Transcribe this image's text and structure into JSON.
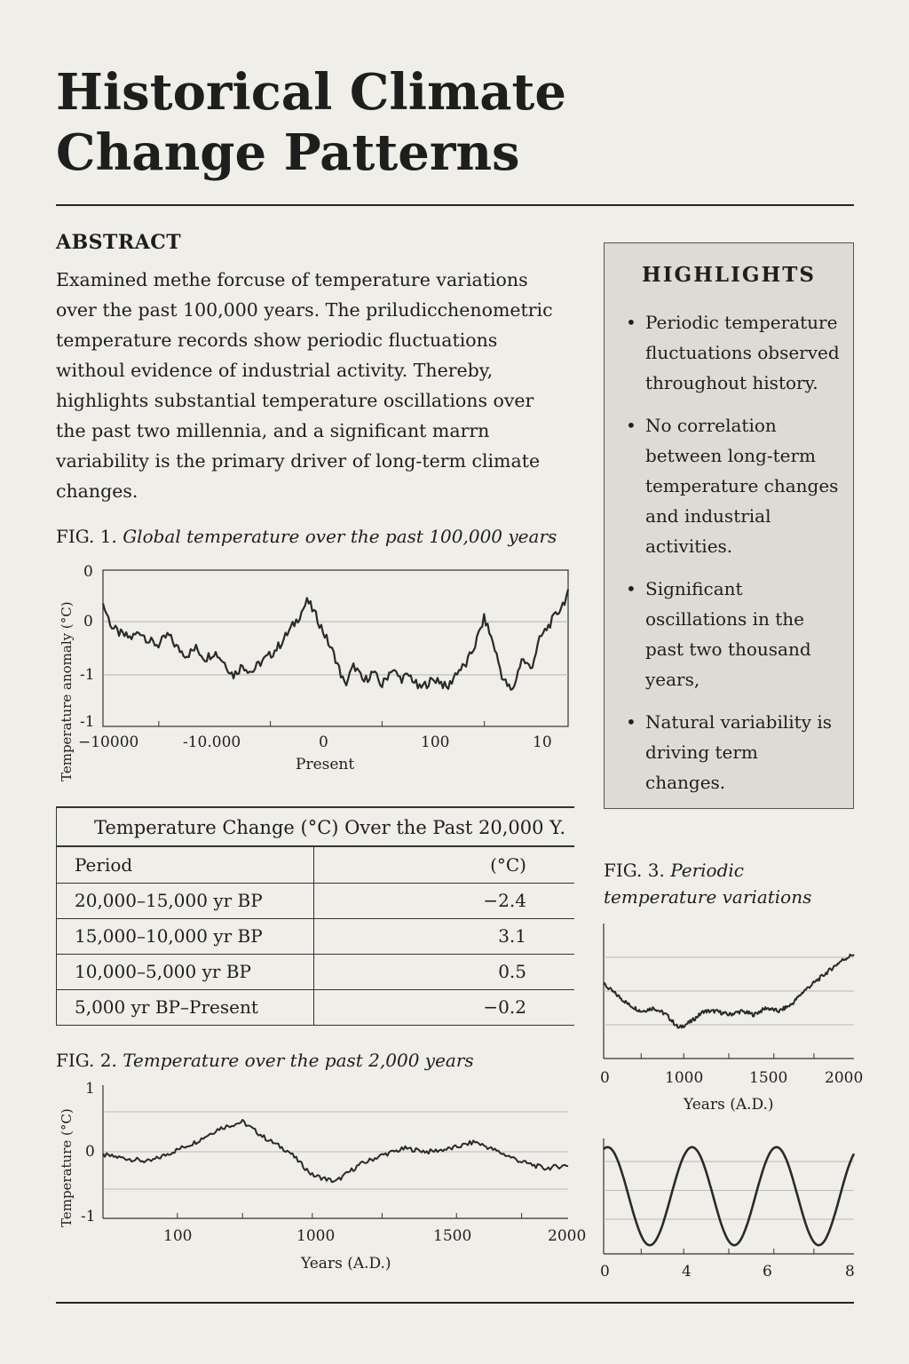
{
  "title": "Historical Climate Change Patterns",
  "abstract": {
    "heading": "ABSTRACT",
    "body": "Examined methe forcuse of temperature variations over the past 100,000 years. The priludicchenometric temperature records show periodic fluctuations withoul evidence of industrial activity. Thereby, highlights substantial temperature oscillations over the past two millennia, and a significant marrn variability is the primary driver of long-term climate changes."
  },
  "highlights": {
    "heading": "HIGHLIGHTS",
    "items": [
      "Periodic temperature fluctuations observed throughout history.",
      "No correlation between long-term temperature changes and industrial activities.",
      "Significant oscillations in the past two thousand years,",
      "Natural variability is driving term changes."
    ]
  },
  "table": {
    "caption": "Temperature Change (°C) Over the Past 20,000 Y.",
    "headers": [
      "Period",
      "(°C)"
    ],
    "rows": [
      [
        "20,000–15,000 yr BP",
        "−2.4"
      ],
      [
        "15,000–10,000 yr BP",
        "3.1"
      ],
      [
        "10,000–5,000 yr BP",
        "0.5"
      ],
      [
        "5,000 yr BP–Present",
        "−0.2"
      ]
    ]
  },
  "figures": {
    "fig1": {
      "num": "FIG. 1.",
      "desc": "Global temperature over the past 100,000 years"
    },
    "fig2": {
      "num": "FIG. 2.",
      "desc": "Temperature over the past 2,000 years"
    },
    "fig3": {
      "num": "FIG. 3.",
      "desc": "Periodic temperature variations"
    }
  },
  "chart_data": [
    {
      "id": "fig1",
      "type": "line",
      "title": "Global temperature over the past 100,000 years",
      "xlabel": "Present",
      "ylabel": "Temperature anomaly (°C)",
      "x_tick_labels": [
        "−10000",
        "-10.000",
        "0",
        "100",
        "10"
      ],
      "y_tick_labels": [
        "0",
        "0",
        "-1",
        "-1"
      ],
      "ylim": [
        -1.5,
        0.8
      ],
      "grid": "horizontal",
      "x": [
        0,
        2,
        4,
        6,
        8,
        10,
        12,
        14,
        16,
        18,
        20,
        22,
        24,
        26,
        28,
        30,
        32,
        34,
        36,
        38,
        40,
        42,
        44,
        46,
        48,
        50,
        52,
        54,
        56,
        58,
        60,
        62,
        64,
        66,
        68,
        70,
        72,
        74,
        76,
        78,
        80,
        82,
        84,
        86,
        88,
        90,
        92,
        94,
        96,
        98,
        100
      ],
      "values": [
        0.3,
        -0.05,
        -0.15,
        -0.2,
        -0.1,
        -0.25,
        -0.3,
        -0.15,
        -0.35,
        -0.45,
        -0.35,
        -0.5,
        -0.4,
        -0.55,
        -0.75,
        -0.6,
        -0.7,
        -0.55,
        -0.45,
        -0.3,
        -0.1,
        0.1,
        0.35,
        0.1,
        -0.2,
        -0.5,
        -0.9,
        -0.6,
        -0.85,
        -0.7,
        -0.9,
        -0.65,
        -0.8,
        -0.75,
        -0.95,
        -0.85,
        -0.8,
        -0.95,
        -0.7,
        -0.6,
        -0.3,
        0.1,
        -0.3,
        -0.8,
        -1.0,
        -0.5,
        -0.65,
        -0.2,
        0.0,
        0.2,
        0.45
      ]
    },
    {
      "id": "fig2",
      "type": "line",
      "title": "Temperature over the past 2,000 years",
      "xlabel": "Years (A.D.)",
      "ylabel": "Temperature (°C)",
      "x_tick_labels": [
        "100",
        "1000",
        "1500",
        "2000"
      ],
      "y_tick_labels": [
        "1",
        "0",
        "-1"
      ],
      "ylim": [
        -1,
        1
      ],
      "grid": "horizontal",
      "x": [
        0,
        100,
        200,
        300,
        400,
        500,
        600,
        700,
        800,
        900,
        1000,
        1100,
        1200,
        1300,
        1400,
        1500,
        1600,
        1700,
        1800,
        1900,
        2000
      ],
      "values": [
        -0.05,
        -0.1,
        -0.15,
        0.0,
        0.15,
        0.35,
        0.45,
        0.2,
        0.0,
        -0.35,
        -0.45,
        -0.2,
        -0.05,
        0.05,
        0.0,
        0.05,
        0.15,
        0.0,
        -0.15,
        -0.25,
        -0.2
      ]
    },
    {
      "id": "fig3a",
      "type": "line",
      "title": "Periodic temperature variations",
      "xlabel": "Years (A.D.)",
      "x_tick_labels": [
        "0",
        "1000",
        "1500",
        "2000"
      ],
      "grid": "horizontal",
      "x": [
        0,
        100,
        200,
        300,
        400,
        500,
        600,
        700,
        800,
        900,
        1000,
        1100,
        1200,
        1300,
        1400,
        1500,
        1600,
        1700,
        1800,
        1900,
        2000
      ],
      "values": [
        0.1,
        -0.05,
        -0.2,
        -0.3,
        -0.25,
        -0.35,
        -0.55,
        -0.45,
        -0.3,
        -0.3,
        -0.35,
        -0.3,
        -0.35,
        -0.25,
        -0.3,
        -0.2,
        0.0,
        0.15,
        0.3,
        0.45,
        0.55
      ]
    },
    {
      "id": "fig3b",
      "type": "line",
      "x_tick_labels": [
        "0",
        "4",
        "6",
        "8"
      ],
      "grid": "horizontal",
      "function": "sine",
      "period": 2.7,
      "xlim": [
        0,
        8
      ]
    }
  ]
}
